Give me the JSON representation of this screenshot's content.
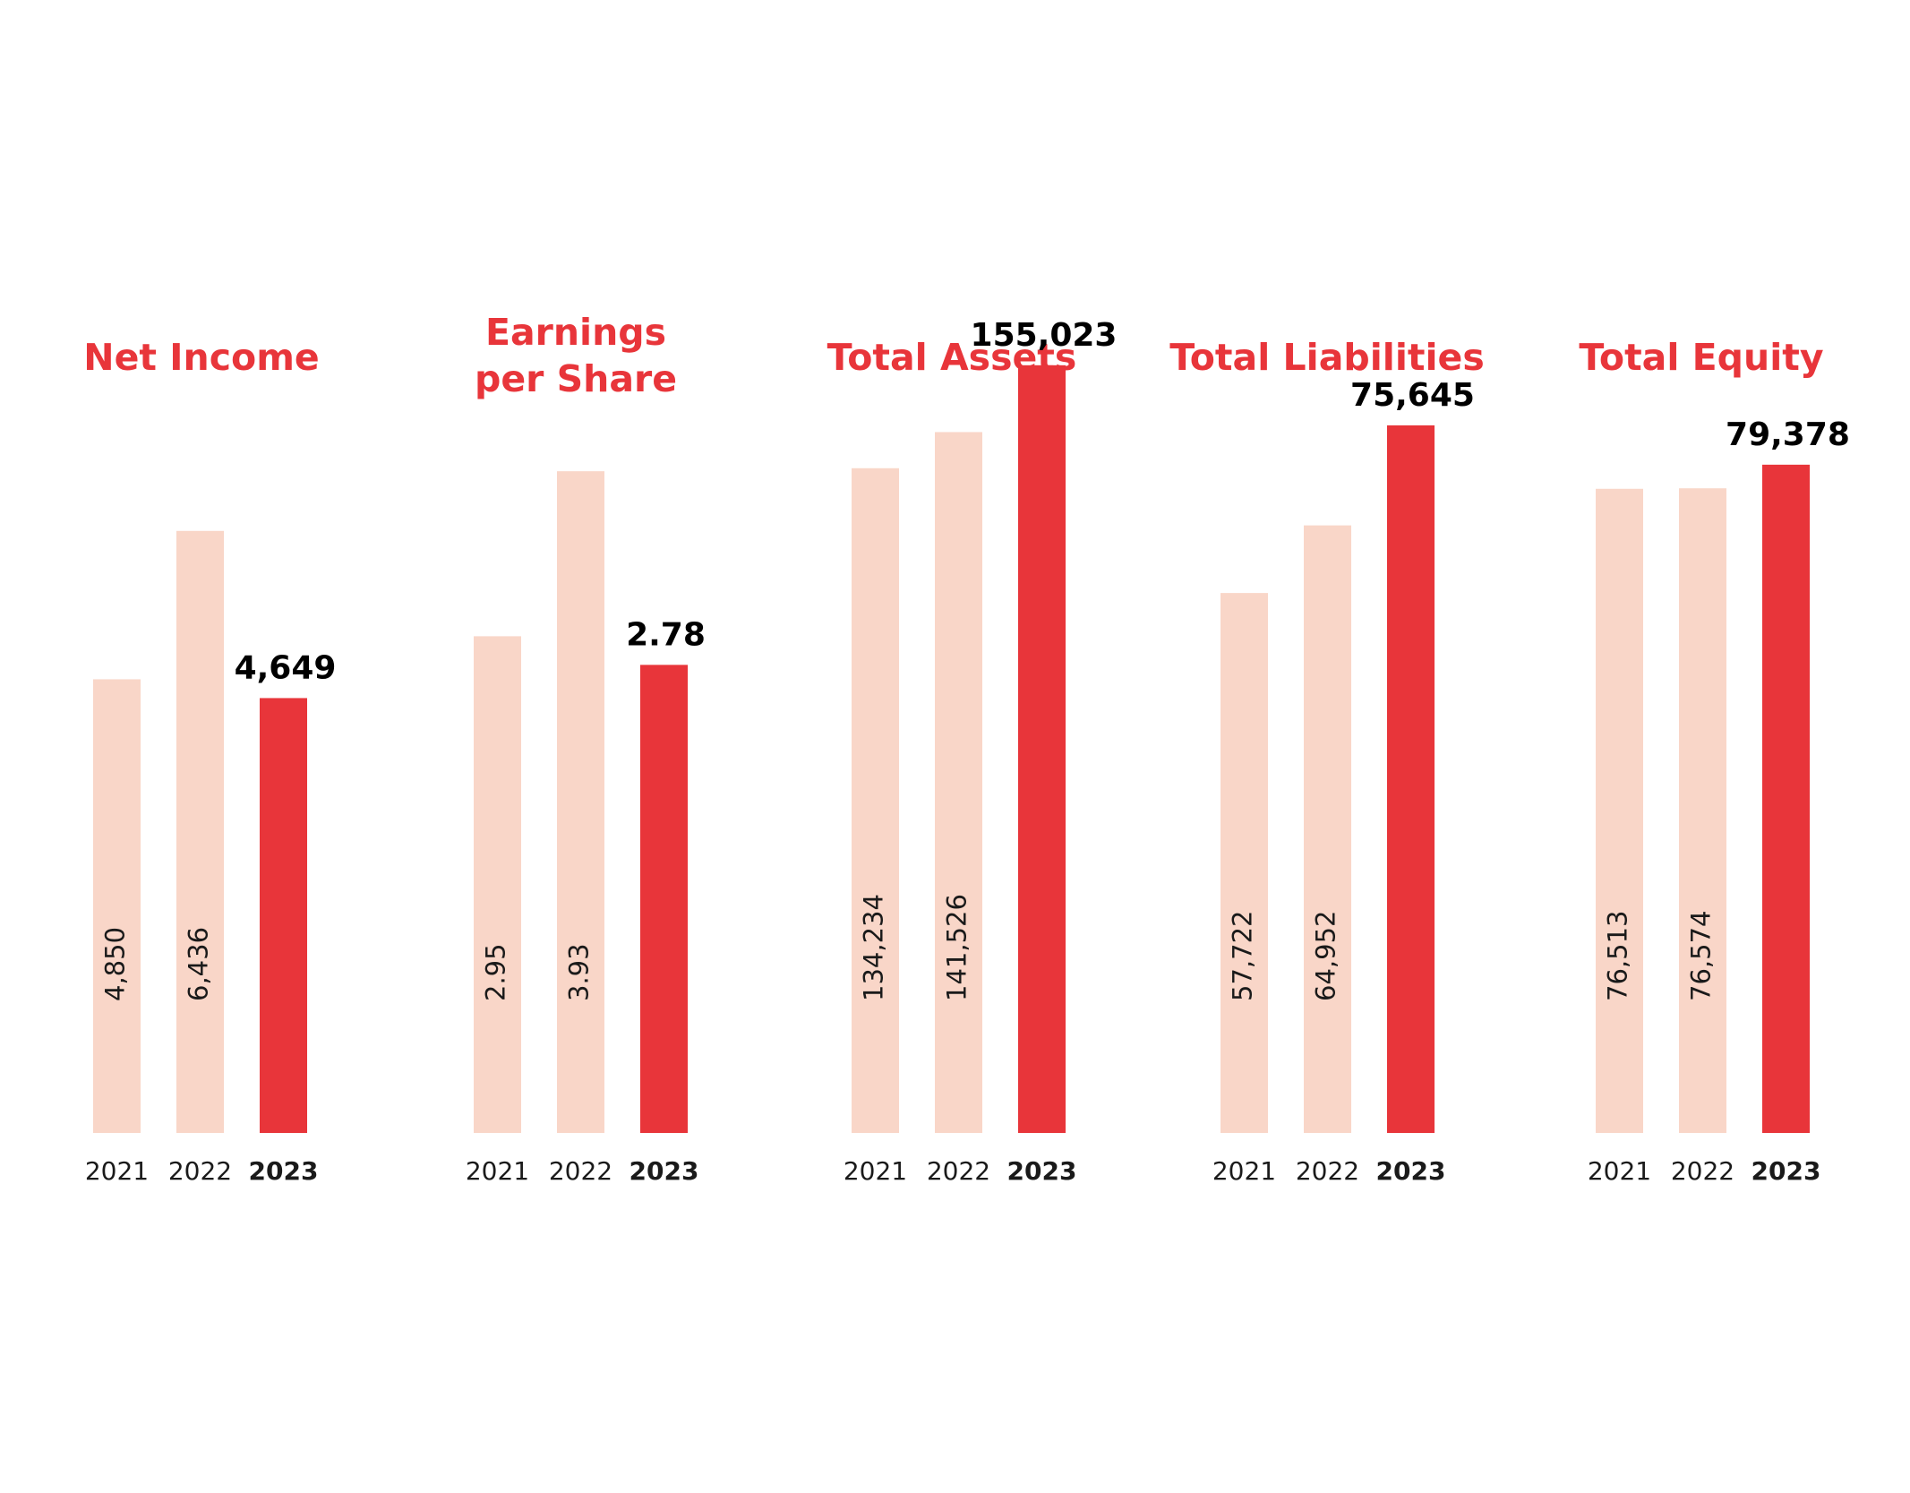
{
  "colors": {
    "accent": "#e8353a",
    "muted": "#f9d6c8",
    "text": "#1a1a1a",
    "emphasis": "#000000"
  },
  "chart_data": [
    {
      "type": "bar",
      "title": [
        "Net Income"
      ],
      "categories": [
        "2021",
        "2022",
        "2023"
      ],
      "values": [
        4850,
        6436,
        4649
      ],
      "labels": [
        "4,850",
        "6,436",
        "4,649"
      ],
      "ylim": [
        0,
        9000
      ]
    },
    {
      "type": "bar",
      "title": [
        "Earnings",
        "per Share"
      ],
      "categories": [
        "2021",
        "2022",
        "2023"
      ],
      "values": [
        2.95,
        3.93,
        2.78
      ],
      "labels": [
        "2.95",
        "3.93",
        "2.78"
      ],
      "ylim": [
        0,
        5.0
      ]
    },
    {
      "type": "bar",
      "title": [
        "Total Assets"
      ],
      "categories": [
        "2021",
        "2022",
        "2023"
      ],
      "values": [
        134234,
        141526,
        155023
      ],
      "labels": [
        "134,234",
        "141,526",
        "155,023"
      ],
      "ylim": [
        0,
        170000
      ]
    },
    {
      "type": "bar",
      "title": [
        "Total Liabilities"
      ],
      "categories": [
        "2021",
        "2022",
        "2023"
      ],
      "values": [
        57722,
        64952,
        75645
      ],
      "labels": [
        "57,722",
        "64,952",
        "75,645"
      ],
      "ylim": [
        0,
        90000
      ]
    },
    {
      "type": "bar",
      "title": [
        "Total Equity"
      ],
      "categories": [
        "2021",
        "2022",
        "2023"
      ],
      "values": [
        76513,
        76574,
        79378
      ],
      "labels": [
        "76,513",
        "76,574",
        "79,378"
      ],
      "ylim": [
        0,
        100000
      ]
    }
  ]
}
